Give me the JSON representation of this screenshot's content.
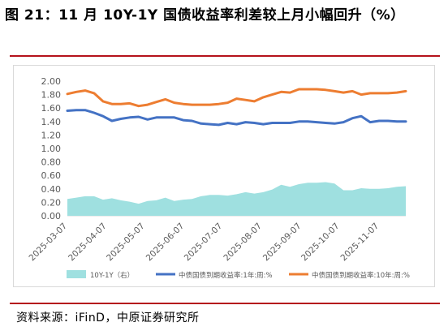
{
  "figure": {
    "title": "图 21：11 月 10Y-1Y 国债收益率利差较上月小幅回升（%）",
    "source": "资料来源：iFinD，中原证券研究所"
  },
  "colors": {
    "rule": "#b5121b",
    "area": "#9fe0e0",
    "line1y": "#4472c4",
    "line10y": "#ed7d31",
    "axis_text": "#595959",
    "grid": "#d9d9d9"
  },
  "chart_data": {
    "type": "line",
    "x": [
      "2025-03-07",
      "2025-03-14",
      "2025-03-21",
      "2025-03-28",
      "2025-04-04",
      "2025-04-11",
      "2025-04-18",
      "2025-04-25",
      "2025-05-02",
      "2025-05-09",
      "2025-05-16",
      "2025-05-23",
      "2025-05-30",
      "2025-06-06",
      "2025-06-13",
      "2025-06-20",
      "2025-06-27",
      "2025-07-04",
      "2025-07-11",
      "2025-07-18",
      "2025-07-25",
      "2025-08-01",
      "2025-08-08",
      "2025-08-15",
      "2025-08-22",
      "2025-08-29",
      "2025-09-05",
      "2025-09-12",
      "2025-09-19",
      "2025-09-26",
      "2025-10-03",
      "2025-10-10",
      "2025-10-17",
      "2025-10-24",
      "2025-10-31",
      "2025-11-07",
      "2025-11-14",
      "2025-11-21",
      "2025-11-28"
    ],
    "xticks": [
      "2025-03-07",
      "2025-04-07",
      "2025-05-07",
      "2025-06-07",
      "2025-07-07",
      "2025-08-07",
      "2025-09-07",
      "2025-10-07",
      "2025-11-07"
    ],
    "yticks": [
      "0.00",
      "0.20",
      "0.40",
      "0.60",
      "0.80",
      "1.00",
      "1.20",
      "1.40",
      "1.60",
      "1.80",
      "2.00"
    ],
    "ylim": [
      0,
      2
    ],
    "series": [
      {
        "name": "10Y-1Y（右）",
        "kind": "area",
        "values": [
          0.25,
          0.27,
          0.29,
          0.29,
          0.24,
          0.26,
          0.23,
          0.21,
          0.18,
          0.22,
          0.23,
          0.27,
          0.22,
          0.24,
          0.25,
          0.29,
          0.31,
          0.31,
          0.3,
          0.32,
          0.35,
          0.33,
          0.35,
          0.39,
          0.46,
          0.43,
          0.47,
          0.49,
          0.49,
          0.5,
          0.48,
          0.38,
          0.38,
          0.41,
          0.4,
          0.4,
          0.41,
          0.43,
          0.44
        ]
      },
      {
        "name": "中债国债到期收益率:1年:周:%",
        "kind": "line",
        "values": [
          1.56,
          1.57,
          1.57,
          1.53,
          1.48,
          1.41,
          1.44,
          1.46,
          1.47,
          1.43,
          1.46,
          1.46,
          1.46,
          1.42,
          1.41,
          1.37,
          1.36,
          1.35,
          1.38,
          1.36,
          1.39,
          1.38,
          1.36,
          1.38,
          1.38,
          1.38,
          1.4,
          1.4,
          1.39,
          1.38,
          1.37,
          1.39,
          1.45,
          1.48,
          1.39,
          1.41,
          1.41,
          1.4,
          1.4
        ]
      },
      {
        "name": "中债国债到期收益率:10年:周:%",
        "kind": "line",
        "values": [
          1.81,
          1.84,
          1.86,
          1.82,
          1.7,
          1.66,
          1.66,
          1.67,
          1.63,
          1.65,
          1.69,
          1.73,
          1.68,
          1.66,
          1.65,
          1.65,
          1.65,
          1.66,
          1.68,
          1.74,
          1.72,
          1.7,
          1.76,
          1.8,
          1.84,
          1.83,
          1.88,
          1.88,
          1.88,
          1.87,
          1.85,
          1.83,
          1.85,
          1.8,
          1.82,
          1.82,
          1.82,
          1.83,
          1.85
        ]
      }
    ],
    "legend": "bottom",
    "grid": false
  }
}
